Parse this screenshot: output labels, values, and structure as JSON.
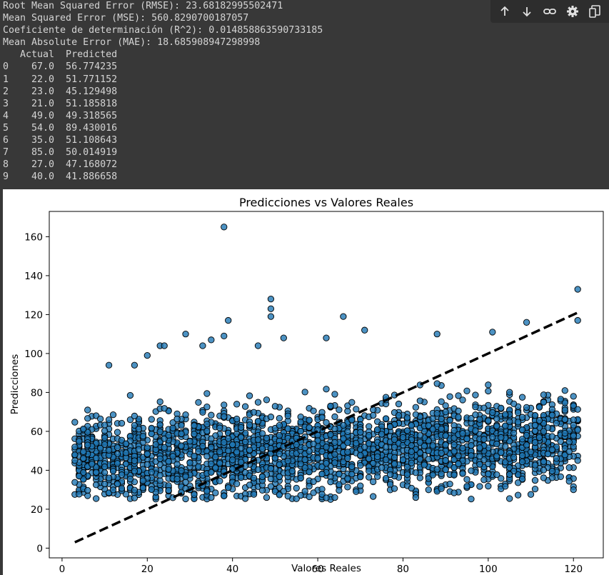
{
  "output": {
    "lines": [
      "Root Mean Squared Error (RMSE): 23.68182995502471",
      "Mean Squared Error (MSE): 560.8290700187057",
      "Coeficiente de determinación (R^2): 0.014858863590733185",
      "Mean Absolute Error (MAE): 18.685908947298998",
      "   Actual  Predicted",
      "0    67.0  56.774235",
      "1    22.0  51.771152",
      "2    23.0  45.129498",
      "3    21.0  51.185818",
      "4    49.0  49.318565",
      "5    54.0  89.430016",
      "6    35.0  51.108643",
      "7    85.0  50.014919",
      "8    27.0  47.168072",
      "9    40.0  41.886658"
    ]
  },
  "toolbar": {
    "icons": [
      "arrow-up-icon",
      "arrow-down-icon",
      "link-icon",
      "gear-icon",
      "copy-icon"
    ]
  },
  "chart_data": {
    "type": "scatter",
    "title": "Predicciones vs Valores Reales",
    "xlabel": "Valores Reales",
    "ylabel": "Predicciones",
    "xlim": [
      -3,
      127
    ],
    "ylim": [
      -5,
      173
    ],
    "xticks": [
      0,
      20,
      40,
      60,
      80,
      100,
      120
    ],
    "yticks": [
      0,
      20,
      40,
      60,
      80,
      100,
      120,
      140,
      160
    ],
    "point_color": "#1f77b4",
    "point_edge_color": "#000000",
    "reference_line": {
      "x": [
        3,
        121
      ],
      "y": [
        3,
        121
      ],
      "style": "dashed",
      "color": "#000000"
    },
    "x_range": [
      3,
      121
    ],
    "predicted_band": [
      25,
      90
    ],
    "outliers": [
      {
        "x": 38,
        "y": 165
      },
      {
        "x": 121,
        "y": 133
      },
      {
        "x": 49,
        "y": 128
      },
      {
        "x": 49,
        "y": 123
      },
      {
        "x": 49,
        "y": 119
      },
      {
        "x": 66,
        "y": 119
      },
      {
        "x": 39,
        "y": 117
      },
      {
        "x": 121,
        "y": 117
      },
      {
        "x": 109,
        "y": 116
      },
      {
        "x": 71,
        "y": 112
      },
      {
        "x": 101,
        "y": 111
      },
      {
        "x": 29,
        "y": 110
      },
      {
        "x": 88,
        "y": 110
      },
      {
        "x": 38,
        "y": 109
      },
      {
        "x": 62,
        "y": 108
      },
      {
        "x": 52,
        "y": 108
      },
      {
        "x": 35,
        "y": 107
      },
      {
        "x": 33,
        "y": 104
      },
      {
        "x": 23,
        "y": 104
      },
      {
        "x": 24,
        "y": 104
      },
      {
        "x": 46,
        "y": 104
      },
      {
        "x": 11,
        "y": 94
      },
      {
        "x": 17,
        "y": 94
      },
      {
        "x": 20,
        "y": 99
      },
      {
        "x": 6,
        "y": 53
      },
      {
        "x": 3,
        "y": 48
      },
      {
        "x": 3,
        "y": 45
      },
      {
        "x": 4,
        "y": 37
      },
      {
        "x": 120,
        "y": 30
      },
      {
        "x": 64,
        "y": 26
      },
      {
        "x": 83,
        "y": 26
      },
      {
        "x": 35,
        "y": 26
      },
      {
        "x": 48,
        "y": 26
      }
    ]
  }
}
